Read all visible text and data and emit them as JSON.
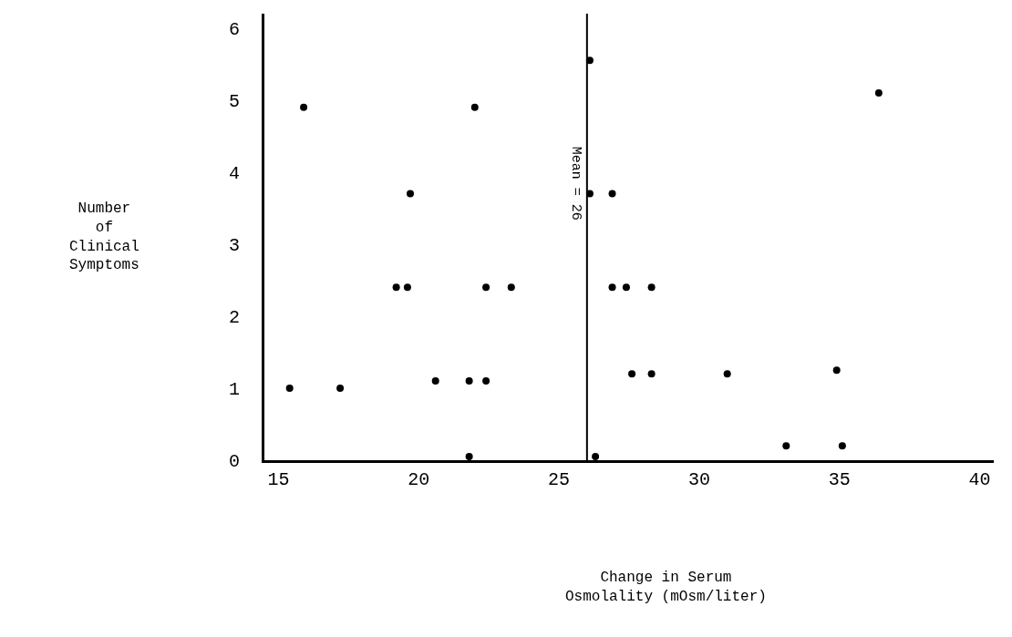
{
  "chart_data": {
    "type": "scatter",
    "annotations": [
      "Number\nof\nClinical\nSymptoms",
      "Change in Serum\nOsmolality (mOsm/liter)"
    ],
    "x": [
      15.4,
      15.9,
      17.2,
      19.2,
      19.6,
      19.7,
      20.6,
      21.8,
      21.8,
      22.0,
      22.4,
      22.4,
      23.3,
      26.1,
      26.1,
      26.3,
      26.9,
      26.9,
      27.4,
      27.6,
      28.3,
      28.3,
      31.0,
      33.1,
      34.9,
      35.1,
      36.4
    ],
    "series": [
      {
        "color": "#000000",
        "values": [
          1.0,
          4.9,
          1.0,
          2.4,
          2.4,
          3.7,
          1.1,
          1.1,
          0.05,
          4.9,
          1.1,
          2.4,
          2.4,
          5.55,
          3.7,
          0.05,
          3.7,
          2.4,
          2.4,
          1.2,
          2.4,
          1.2,
          1.2,
          0.2,
          1.25,
          0.2,
          5.1
        ]
      }
    ],
    "marker": "circle",
    "xlim": [
      14.5,
      40.5
    ],
    "xticks": [
      15,
      20,
      25,
      30,
      35,
      40
    ],
    "ylim": [
      0,
      6.2
    ],
    "yticks": [
      0,
      1,
      2,
      3,
      4,
      5,
      6
    ],
    "ref_lines": [
      {
        "axis": "x",
        "value": 26,
        "label": "Mean = 26",
        "color": "#000000"
      }
    ]
  }
}
